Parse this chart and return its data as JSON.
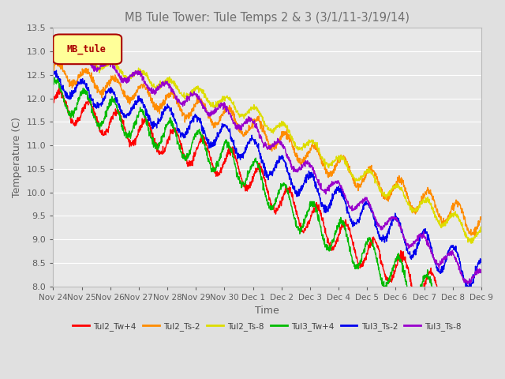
{
  "title": "MB Tule Tower: Tule Temps 2 & 3 (3/1/11-3/19/14)",
  "xlabel": "Time",
  "ylabel": "Temperature (C)",
  "ylim": [
    8.0,
    13.5
  ],
  "yticks": [
    8.0,
    8.5,
    9.0,
    9.5,
    10.0,
    10.5,
    11.0,
    11.5,
    12.0,
    12.5,
    13.0,
    13.5
  ],
  "xtick_labels": [
    "Nov 24",
    "Nov 25",
    "Nov 26",
    "Nov 27",
    "Nov 28",
    "Nov 29",
    "Nov 30",
    "Dec 1",
    "Dec 2",
    "Dec 3",
    "Dec 4",
    "Dec 5",
    "Dec 6",
    "Dec 7",
    "Dec 8",
    "Dec 9"
  ],
  "series_names": [
    "Tul2_Tw+4",
    "Tul2_Ts-2",
    "Tul2_Ts-8",
    "Tul3_Tw+4",
    "Tul3_Ts-2",
    "Tul3_Ts-8"
  ],
  "series_colors": [
    "#ff0000",
    "#ff8c00",
    "#dddd00",
    "#00bb00",
    "#0000ee",
    "#9900cc"
  ],
  "legend_label": "MB_tule",
  "legend_bg": "#ffff99",
  "legend_border": "#aa0000",
  "background_color": "#e8e8e8",
  "grid_color": "#ffffff",
  "title_color": "#707070",
  "axis_label_color": "#606060",
  "tick_label_color": "#404040",
  "fig_bg": "#e0e0e0"
}
